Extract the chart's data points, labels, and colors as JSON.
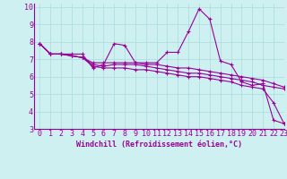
{
  "xlabel": "Windchill (Refroidissement éolien,°C)",
  "background_color": "#cef0f0",
  "line_color": "#990099",
  "xlim": [
    -0.5,
    23
  ],
  "ylim": [
    3,
    10.2
  ],
  "yticks": [
    3,
    4,
    5,
    6,
    7,
    8,
    9,
    10
  ],
  "xticks": [
    0,
    1,
    2,
    3,
    4,
    5,
    6,
    7,
    8,
    9,
    10,
    11,
    12,
    13,
    14,
    15,
    16,
    17,
    18,
    19,
    20,
    21,
    22,
    23
  ],
  "series": [
    [
      7.9,
      7.3,
      7.3,
      7.3,
      7.3,
      6.5,
      6.7,
      7.9,
      7.8,
      6.8,
      6.8,
      6.8,
      7.4,
      7.4,
      8.6,
      9.9,
      9.3,
      6.9,
      6.7,
      5.7,
      5.5,
      5.6,
      3.5,
      3.3
    ],
    [
      7.9,
      7.3,
      7.3,
      7.2,
      7.1,
      6.7,
      6.6,
      6.7,
      6.7,
      6.7,
      6.6,
      6.5,
      6.4,
      6.3,
      6.2,
      6.2,
      6.1,
      6.0,
      5.9,
      5.8,
      5.7,
      5.5,
      5.4,
      5.3
    ],
    [
      7.9,
      7.3,
      7.3,
      7.2,
      7.1,
      6.8,
      6.8,
      6.8,
      6.8,
      6.8,
      6.7,
      6.7,
      6.6,
      6.5,
      6.5,
      6.4,
      6.3,
      6.2,
      6.1,
      6.0,
      5.9,
      5.8,
      5.6,
      5.4
    ],
    [
      7.9,
      7.3,
      7.3,
      7.2,
      7.1,
      6.6,
      6.5,
      6.5,
      6.5,
      6.4,
      6.4,
      6.3,
      6.2,
      6.1,
      6.0,
      6.0,
      5.9,
      5.8,
      5.7,
      5.5,
      5.4,
      5.3,
      4.5,
      3.3
    ]
  ],
  "grid_color": "#aadddd",
  "xlabel_fontsize": 6,
  "tick_fontsize": 6,
  "marker": "+"
}
